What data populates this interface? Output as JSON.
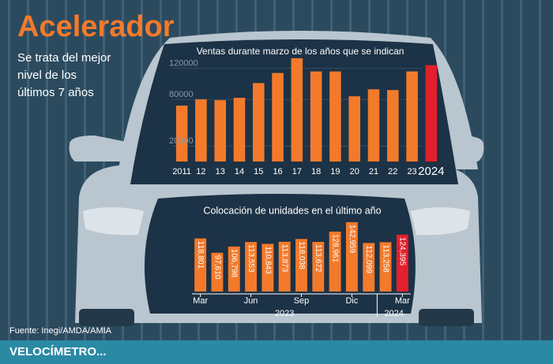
{
  "header": {
    "title": "Acelerador",
    "subtitle_lines": [
      "Se trata del mejor",
      "nivel de los",
      "últimos 7 años"
    ]
  },
  "chart_data": [
    {
      "type": "bar",
      "title": "Ventas durante marzo de los años que se indican",
      "categories": [
        "2011",
        "12",
        "13",
        "14",
        "15",
        "16",
        "17",
        "18",
        "19",
        "20",
        "21",
        "22",
        "23",
        "2024"
      ],
      "values": [
        72000,
        80000,
        79000,
        82000,
        101000,
        114000,
        133000,
        116000,
        116000,
        84000,
        93000,
        92000,
        116000,
        124000
      ],
      "colors": [
        "#f37a2b",
        "#f37a2b",
        "#f37a2b",
        "#f37a2b",
        "#f37a2b",
        "#f37a2b",
        "#f37a2b",
        "#f37a2b",
        "#f37a2b",
        "#f37a2b",
        "#f37a2b",
        "#f37a2b",
        "#f37a2b",
        "#e3202b"
      ],
      "ylim": [
        0,
        140000
      ],
      "yticks": [
        20000,
        80000,
        120000
      ],
      "grid": true
    },
    {
      "type": "bar",
      "title": "Colocación de unidades en el último año",
      "categories": [
        "Mar",
        null,
        null,
        "Jun",
        null,
        null,
        "Sep",
        null,
        null,
        "Dic",
        null,
        null,
        "Mar"
      ],
      "values": [
        118801,
        97610,
        106798,
        113553,
        110843,
        113873,
        118038,
        113672,
        128961,
        142959,
        112099,
        113258,
        124395
      ],
      "value_labels": [
        "118,801",
        "97,610",
        "106,798",
        "113,553",
        "110,843",
        "113,873",
        "118,038",
        "113,672",
        "128,961",
        "142,959",
        "112,099",
        "113,258",
        "124,395"
      ],
      "colors": [
        "#f37a2b",
        "#f37a2b",
        "#f37a2b",
        "#f37a2b",
        "#f37a2b",
        "#f37a2b",
        "#f37a2b",
        "#f37a2b",
        "#f37a2b",
        "#f37a2b",
        "#f37a2b",
        "#f37a2b",
        "#e3202b"
      ],
      "x_groups": [
        "2023",
        "2024"
      ],
      "ylim": [
        40000,
        150000
      ]
    }
  ],
  "source": "Fuente: Inegi/AMDA/AMIA",
  "banner": "VELOCÍMETRO..."
}
